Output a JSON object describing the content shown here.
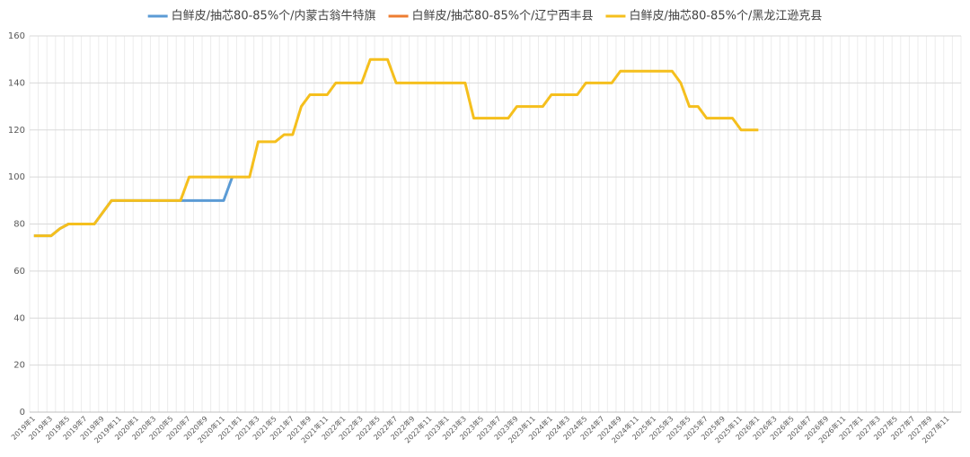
{
  "chart_data": {
    "type": "line",
    "categories": [
      "2019年1",
      null,
      "2019年3",
      null,
      "2019年5",
      null,
      "2019年7",
      null,
      "2019年9",
      null,
      "2019年11",
      null,
      "2020年1",
      null,
      "2020年3",
      null,
      "2020年5",
      null,
      "2020年7",
      null,
      "2020年9",
      null,
      "2020年11",
      null,
      "2021年1",
      null,
      "2021年3",
      null,
      "2021年5",
      null,
      "2021年7",
      null,
      "2021年9",
      null,
      "2021年11",
      null,
      "2022年1",
      null,
      "2022年3",
      null,
      "2022年5",
      null,
      "2022年7",
      null,
      "2022年9",
      null,
      "2022年11",
      null,
      "2023年1",
      null,
      "2023年3",
      null,
      "2023年5",
      null,
      "2023年7",
      null,
      "2023年9",
      null,
      "2023年11",
      null,
      "2024年1",
      null,
      "2024年3",
      null,
      "2024年5",
      null,
      "2024年7",
      null,
      "2024年9",
      null,
      "2024年11",
      null,
      "2025年1",
      null,
      "2025年3",
      null,
      "2025年5",
      null,
      "2025年7",
      null,
      "2025年9",
      null,
      "2025年11",
      null,
      "2026年1",
      null,
      "2026年3",
      null,
      "2026年5",
      null,
      "2026年7",
      null,
      "2026年9",
      null,
      "2026年11",
      null,
      "2027年1",
      null,
      "2027年3",
      null,
      "2027年5",
      null,
      "2027年7",
      null,
      "2027年9",
      null,
      "2027年11",
      null
    ],
    "series": [
      {
        "name": "白鲜皮/抽芯80-85%个/内蒙古翁牛特旗",
        "color": "#5b9bd5",
        "values": [
          75,
          75,
          75,
          78,
          80,
          80,
          80,
          80,
          85,
          90,
          90,
          90,
          90,
          90,
          90,
          90,
          90,
          90,
          90,
          90,
          90,
          90,
          90,
          100,
          null,
          null,
          null,
          null,
          null,
          null,
          null,
          null,
          null,
          null,
          null,
          null,
          null,
          null,
          null,
          null,
          null,
          null,
          null,
          null,
          null,
          null,
          null,
          null,
          null,
          null,
          null,
          null,
          null,
          null,
          null,
          null,
          null,
          null,
          null,
          null,
          null,
          null,
          null,
          null,
          null,
          null,
          null,
          null,
          null,
          null,
          null,
          null,
          null,
          null,
          null,
          null,
          null,
          null,
          null,
          null,
          null,
          null,
          null,
          null,
          null,
          null,
          null,
          null,
          null,
          null,
          null,
          null,
          null,
          null,
          null,
          null,
          null,
          null,
          null,
          null,
          null,
          null,
          null,
          null,
          null,
          null,
          null,
          null
        ]
      },
      {
        "name": "白鲜皮/抽芯80-85%个/辽宁西丰县",
        "color": "#ed7d31",
        "values": [
          null,
          null,
          null,
          null,
          null,
          null,
          null,
          null,
          null,
          null,
          null,
          null,
          null,
          null,
          null,
          null,
          null,
          null,
          null,
          null,
          null,
          null,
          null,
          null,
          null,
          null,
          null,
          null,
          null,
          null,
          null,
          null,
          null,
          null,
          null,
          null,
          null,
          null,
          null,
          null,
          null,
          null,
          null,
          null,
          null,
          null,
          null,
          null,
          null,
          null,
          null,
          null,
          null,
          null,
          null,
          null,
          null,
          null,
          null,
          null,
          null,
          null,
          null,
          null,
          null,
          null,
          null,
          null,
          null,
          null,
          null,
          null,
          null,
          null,
          null,
          null,
          null,
          null,
          null,
          null,
          null,
          null,
          null,
          null,
          null,
          null,
          null,
          null,
          null,
          null,
          null,
          null,
          null,
          null,
          null,
          null,
          null,
          null,
          null,
          null,
          null,
          null,
          null,
          null,
          null,
          null,
          null,
          null
        ]
      },
      {
        "name": "白鲜皮/抽芯80-85%个/黑龙江逊克县",
        "color": "#f5bf1d",
        "values": [
          75,
          75,
          75,
          78,
          80,
          80,
          80,
          80,
          85,
          90,
          90,
          90,
          90,
          90,
          90,
          90,
          90,
          90,
          100,
          100,
          100,
          100,
          100,
          100,
          100,
          100,
          115,
          115,
          115,
          118,
          118,
          130,
          135,
          135,
          135,
          140,
          140,
          140,
          140,
          150,
          150,
          150,
          140,
          140,
          140,
          140,
          140,
          140,
          140,
          140,
          140,
          125,
          125,
          125,
          125,
          125,
          130,
          130,
          130,
          130,
          135,
          135,
          135,
          135,
          140,
          140,
          140,
          140,
          145,
          145,
          145,
          145,
          145,
          145,
          145,
          140,
          130,
          130,
          125,
          125,
          125,
          125,
          120,
          120,
          120,
          null,
          null,
          null,
          null,
          null,
          null,
          null,
          null,
          null,
          null,
          null,
          null,
          null,
          null,
          null,
          null,
          null,
          null,
          null,
          null,
          null,
          null,
          null
        ]
      }
    ],
    "ylim": [
      0,
      160
    ],
    "yticks": [
      0,
      20,
      40,
      60,
      80,
      100,
      120,
      140,
      160
    ],
    "grid": true,
    "legend": "top"
  }
}
